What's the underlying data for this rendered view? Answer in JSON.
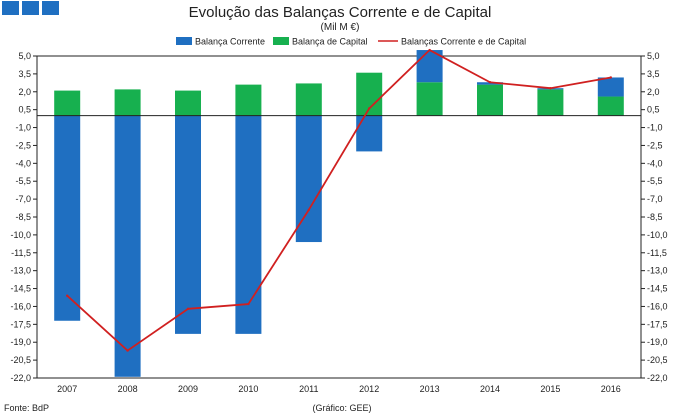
{
  "chart_data": {
    "type": "bar",
    "title": "Evolução das Balanças Corrente e de Capital",
    "subtitle": "(Mil M €)",
    "categories": [
      "2007",
      "2008",
      "2009",
      "2010",
      "2011",
      "2012",
      "2013",
      "2014",
      "2015",
      "2016"
    ],
    "series": [
      {
        "name": "Balança Corrente",
        "kind": "bar",
        "color": "#1f6fc1",
        "values": [
          -17.2,
          -21.9,
          -18.3,
          -18.3,
          -10.6,
          -3.0,
          2.7,
          0.2,
          0.1,
          1.6
        ]
      },
      {
        "name": "Balança de Capital",
        "kind": "bar",
        "color": "#17b04f",
        "values": [
          2.1,
          2.2,
          2.1,
          2.6,
          2.7,
          3.6,
          2.8,
          2.6,
          2.2,
          1.6
        ]
      },
      {
        "name": "Balanças Corrente e de Capital",
        "kind": "line",
        "color": "#d02020",
        "values": [
          -15.1,
          -19.7,
          -16.2,
          -15.8,
          -7.9,
          0.6,
          5.5,
          2.8,
          2.3,
          3.2
        ]
      }
    ],
    "yticks": [
      "5,0",
      "3,5",
      "2,0",
      "0,5",
      "-1,0",
      "-2,5",
      "-4,0",
      "-5,5",
      "-7,0",
      "-8,5",
      "-10,0",
      "-11,5",
      "-13,0",
      "-14,5",
      "-16,0",
      "-17,5",
      "-19,0",
      "-20,5",
      "-22,0"
    ],
    "ylim": [
      -22.0,
      5.0
    ],
    "grid": false,
    "legend_position": "top"
  },
  "footer": {
    "source": "Fonte: BdP",
    "credit": "(Gráfico: GEE)"
  },
  "logo_color": "#1f6fc1"
}
